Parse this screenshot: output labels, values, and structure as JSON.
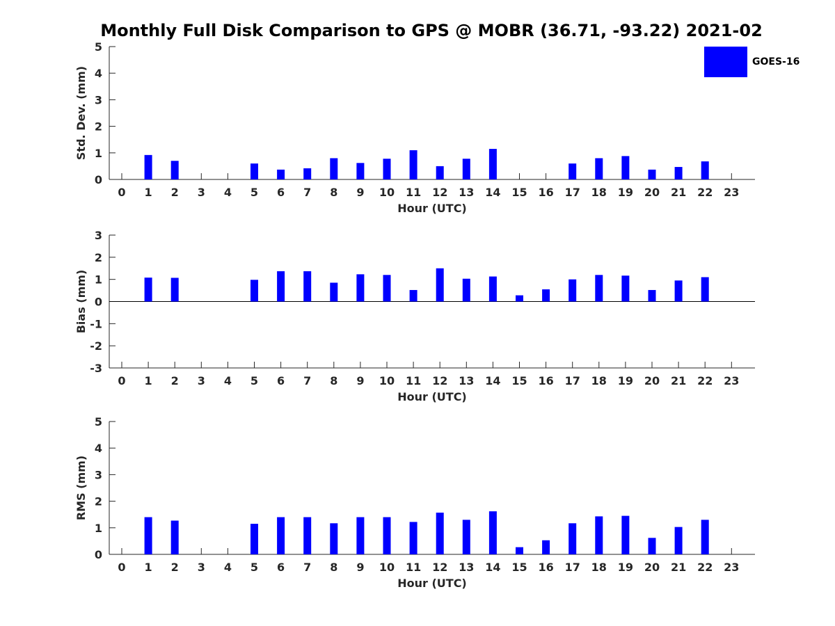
{
  "title": "Monthly Full Disk Comparison to GPS @ MOBR (36.71, -93.22) 2021-02",
  "legend": {
    "label": "GOES-16",
    "color": "#0000ff"
  },
  "chart_data": [
    {
      "type": "bar",
      "name": "std-dev",
      "ylabel": "Std. Dev. (mm)",
      "xlabel": "Hour (UTC)",
      "ylim": [
        0,
        5
      ],
      "yticks": [
        0,
        1,
        2,
        3,
        4,
        5
      ],
      "categories": [
        "0",
        "1",
        "2",
        "3",
        "4",
        "5",
        "6",
        "7",
        "8",
        "9",
        "10",
        "11",
        "12",
        "13",
        "14",
        "15",
        "16",
        "17",
        "18",
        "19",
        "20",
        "21",
        "22",
        "23"
      ],
      "series": [
        {
          "name": "GOES-16",
          "values": [
            null,
            0.92,
            0.7,
            null,
            null,
            0.6,
            0.37,
            0.42,
            0.8,
            0.62,
            0.78,
            1.1,
            0.5,
            0.78,
            1.15,
            null,
            null,
            0.6,
            0.8,
            0.88,
            0.37,
            0.47,
            0.68,
            null
          ]
        }
      ]
    },
    {
      "type": "bar",
      "name": "bias",
      "ylabel": "Bias (mm)",
      "xlabel": "Hour (UTC)",
      "ylim": [
        -3,
        3
      ],
      "yticks": [
        -3,
        -2,
        -1,
        0,
        1,
        2,
        3
      ],
      "zero_line": true,
      "categories": [
        "0",
        "1",
        "2",
        "3",
        "4",
        "5",
        "6",
        "7",
        "8",
        "9",
        "10",
        "11",
        "12",
        "13",
        "14",
        "15",
        "16",
        "17",
        "18",
        "19",
        "20",
        "21",
        "22",
        "23"
      ],
      "series": [
        {
          "name": "GOES-16",
          "values": [
            null,
            1.08,
            1.07,
            null,
            null,
            0.98,
            1.37,
            1.37,
            0.85,
            1.23,
            1.2,
            0.52,
            1.5,
            1.03,
            1.13,
            0.28,
            0.55,
            1.0,
            1.2,
            1.17,
            0.52,
            0.95,
            1.1,
            null
          ]
        }
      ]
    },
    {
      "type": "bar",
      "name": "rms",
      "ylabel": "RMS (mm)",
      "xlabel": "Hour (UTC)",
      "ylim": [
        0,
        5
      ],
      "yticks": [
        0,
        1,
        2,
        3,
        4,
        5
      ],
      "categories": [
        "0",
        "1",
        "2",
        "3",
        "4",
        "5",
        "6",
        "7",
        "8",
        "9",
        "10",
        "11",
        "12",
        "13",
        "14",
        "15",
        "16",
        "17",
        "18",
        "19",
        "20",
        "21",
        "22",
        "23"
      ],
      "series": [
        {
          "name": "GOES-16",
          "values": [
            null,
            1.4,
            1.27,
            null,
            null,
            1.15,
            1.4,
            1.4,
            1.17,
            1.4,
            1.4,
            1.22,
            1.57,
            1.3,
            1.62,
            0.27,
            0.53,
            1.17,
            1.43,
            1.45,
            0.62,
            1.03,
            1.3,
            null
          ]
        }
      ]
    }
  ]
}
